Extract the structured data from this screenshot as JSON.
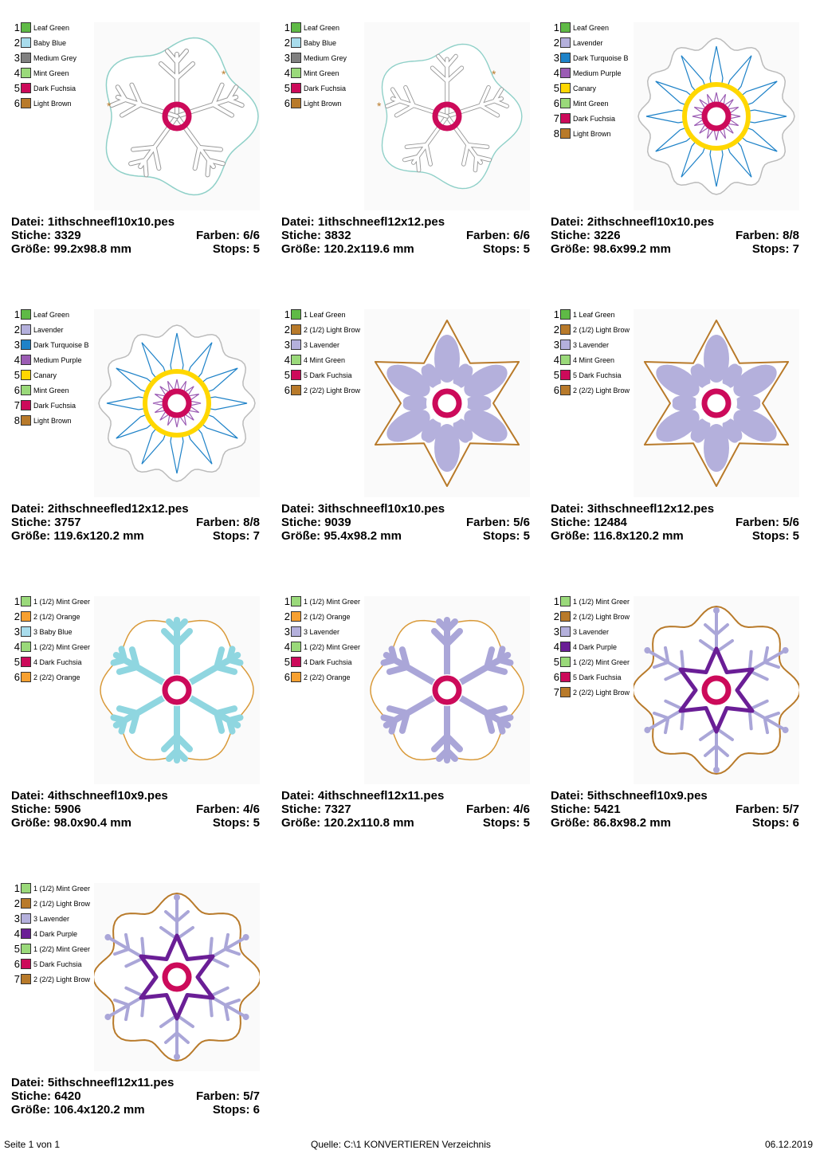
{
  "cards": [
    {
      "file_label": "Datei:",
      "file": "1ithschneefl10x10.pes",
      "stitches_label": "Stiche:",
      "stitches": "3329",
      "colors_label": "Farben:",
      "colors": "6/6",
      "size_label": "Größe:",
      "size": "99.2x98.8 mm",
      "stops_label": "Stops:",
      "stops": "5",
      "legend": [
        {
          "n": "1",
          "c": "#5fba46",
          "l": "Leaf Green"
        },
        {
          "n": "2",
          "c": "#a8dcec",
          "l": "Baby Blue"
        },
        {
          "n": "3",
          "c": "#808080",
          "l": "Medium Grey"
        },
        {
          "n": "4",
          "c": "#9ad97a",
          "l": "Mint Green"
        },
        {
          "n": "5",
          "c": "#cc0a5a",
          "l": "Dark Fuchsia"
        },
        {
          "n": "6",
          "c": "#b87a2a",
          "l": "Light Brown"
        }
      ]
    },
    {
      "file_label": "Datei:",
      "file": "1ithschneefl12x12.pes",
      "stitches_label": "Stiche:",
      "stitches": "3832",
      "colors_label": "Farben:",
      "colors": "6/6",
      "size_label": "Größe:",
      "size": "120.2x119.6 mm",
      "stops_label": "Stops:",
      "stops": "5",
      "legend": [
        {
          "n": "1",
          "c": "#5fba46",
          "l": "Leaf Green"
        },
        {
          "n": "2",
          "c": "#a8dcec",
          "l": "Baby Blue"
        },
        {
          "n": "3",
          "c": "#808080",
          "l": "Medium Grey"
        },
        {
          "n": "4",
          "c": "#9ad97a",
          "l": "Mint Green"
        },
        {
          "n": "5",
          "c": "#cc0a5a",
          "l": "Dark Fuchsia"
        },
        {
          "n": "6",
          "c": "#b87a2a",
          "l": "Light Brown"
        }
      ]
    },
    {
      "file_label": "Datei:",
      "file": "2ithschneefl10x10.pes",
      "stitches_label": "Stiche:",
      "stitches": "3226",
      "colors_label": "Farben:",
      "colors": "8/8",
      "size_label": "Größe:",
      "size": "98.6x99.2 mm",
      "stops_label": "Stops:",
      "stops": "7",
      "legend": [
        {
          "n": "1",
          "c": "#5fba46",
          "l": "Leaf Green"
        },
        {
          "n": "2",
          "c": "#b4b0dc",
          "l": "Lavender"
        },
        {
          "n": "3",
          "c": "#1e82c8",
          "l": "Dark Turquoise B"
        },
        {
          "n": "4",
          "c": "#9b5cb4",
          "l": "Medium Purple"
        },
        {
          "n": "5",
          "c": "#ffd700",
          "l": "Canary"
        },
        {
          "n": "6",
          "c": "#9ad97a",
          "l": "Mint Green"
        },
        {
          "n": "7",
          "c": "#cc0a5a",
          "l": "Dark Fuchsia"
        },
        {
          "n": "8",
          "c": "#b87a2a",
          "l": "Light Brown"
        }
      ]
    },
    {
      "file_label": "Datei:",
      "file": "2ithschneefled12x12.pes",
      "stitches_label": "Stiche:",
      "stitches": "3757",
      "colors_label": "Farben:",
      "colors": "8/8",
      "size_label": "Größe:",
      "size": "119.6x120.2 mm",
      "stops_label": "Stops:",
      "stops": "7",
      "legend": [
        {
          "n": "1",
          "c": "#5fba46",
          "l": "Leaf Green"
        },
        {
          "n": "2",
          "c": "#b4b0dc",
          "l": "Lavender"
        },
        {
          "n": "3",
          "c": "#1e82c8",
          "l": "Dark Turquoise B"
        },
        {
          "n": "4",
          "c": "#9b5cb4",
          "l": "Medium Purple"
        },
        {
          "n": "5",
          "c": "#ffd700",
          "l": "Canary"
        },
        {
          "n": "6",
          "c": "#9ad97a",
          "l": "Mint Green"
        },
        {
          "n": "7",
          "c": "#cc0a5a",
          "l": "Dark Fuchsia"
        },
        {
          "n": "8",
          "c": "#b87a2a",
          "l": "Light Brown"
        }
      ]
    },
    {
      "file_label": "Datei:",
      "file": "3ithschneefl10x10.pes",
      "stitches_label": "Stiche:",
      "stitches": "9039",
      "colors_label": "Farben:",
      "colors": "5/6",
      "size_label": "Größe:",
      "size": "95.4x98.2 mm",
      "stops_label": "Stops:",
      "stops": "5",
      "legend": [
        {
          "n": "1",
          "c": "#5fba46",
          "l": "1 Leaf Green"
        },
        {
          "n": "2",
          "c": "#b87a2a",
          "l": "2 (1/2) Light Brow"
        },
        {
          "n": "3",
          "c": "#b4b0dc",
          "l": "3 Lavender"
        },
        {
          "n": "4",
          "c": "#9ad97a",
          "l": "4 Mint Green"
        },
        {
          "n": "5",
          "c": "#cc0a5a",
          "l": "5 Dark Fuchsia"
        },
        {
          "n": "6",
          "c": "#b87a2a",
          "l": "2 (2/2) Light Brow"
        }
      ]
    },
    {
      "file_label": "Datei:",
      "file": "3ithschneefl12x12.pes",
      "stitches_label": "Stiche:",
      "stitches": "12484",
      "colors_label": "Farben:",
      "colors": "5/6",
      "size_label": "Größe:",
      "size": "116.8x120.2 mm",
      "stops_label": "Stops:",
      "stops": "5",
      "legend": [
        {
          "n": "1",
          "c": "#5fba46",
          "l": "1 Leaf Green"
        },
        {
          "n": "2",
          "c": "#b87a2a",
          "l": "2 (1/2) Light Brow"
        },
        {
          "n": "3",
          "c": "#b4b0dc",
          "l": "3 Lavender"
        },
        {
          "n": "4",
          "c": "#9ad97a",
          "l": "4 Mint Green"
        },
        {
          "n": "5",
          "c": "#cc0a5a",
          "l": "5 Dark Fuchsia"
        },
        {
          "n": "6",
          "c": "#b87a2a",
          "l": "2 (2/2) Light Brow"
        }
      ]
    },
    {
      "file_label": "Datei:",
      "file": "4ithschneefl10x9.pes",
      "stitches_label": "Stiche:",
      "stitches": "5906",
      "colors_label": "Farben:",
      "colors": "4/6",
      "size_label": "Größe:",
      "size": "98.0x90.4 mm",
      "stops_label": "Stops:",
      "stops": "5",
      "legend": [
        {
          "n": "1",
          "c": "#9ad97a",
          "l": "1 (1/2) Mint Greer"
        },
        {
          "n": "2",
          "c": "#f7a030",
          "l": "2 (1/2) Orange"
        },
        {
          "n": "3",
          "c": "#a8dcec",
          "l": "3 Baby Blue"
        },
        {
          "n": "4",
          "c": "#9ad97a",
          "l": "1 (2/2) Mint Greer"
        },
        {
          "n": "5",
          "c": "#cc0a5a",
          "l": "4 Dark Fuchsia"
        },
        {
          "n": "6",
          "c": "#f7a030",
          "l": "2 (2/2) Orange"
        }
      ]
    },
    {
      "file_label": "Datei:",
      "file": "4ithschneefl12x11.pes",
      "stitches_label": "Stiche:",
      "stitches": "7327",
      "colors_label": "Farben:",
      "colors": "4/6",
      "size_label": "Größe:",
      "size": "120.2x110.8 mm",
      "stops_label": "Stops:",
      "stops": "5",
      "legend": [
        {
          "n": "1",
          "c": "#9ad97a",
          "l": "1 (1/2) Mint Greer"
        },
        {
          "n": "2",
          "c": "#f7a030",
          "l": "2 (1/2) Orange"
        },
        {
          "n": "3",
          "c": "#b4b0dc",
          "l": "3 Lavender"
        },
        {
          "n": "4",
          "c": "#9ad97a",
          "l": "1 (2/2) Mint Greer"
        },
        {
          "n": "5",
          "c": "#cc0a5a",
          "l": "4 Dark Fuchsia"
        },
        {
          "n": "6",
          "c": "#f7a030",
          "l": "2 (2/2) Orange"
        }
      ]
    },
    {
      "file_label": "Datei:",
      "file": "5ithschneefl10x9.pes",
      "stitches_label": "Stiche:",
      "stitches": "5421",
      "colors_label": "Farben:",
      "colors": "5/7",
      "size_label": "Größe:",
      "size": "86.8x98.2 mm",
      "stops_label": "Stops:",
      "stops": "6",
      "legend": [
        {
          "n": "1",
          "c": "#9ad97a",
          "l": "1 (1/2) Mint Greer"
        },
        {
          "n": "2",
          "c": "#b87a2a",
          "l": "2 (1/2) Light Brow"
        },
        {
          "n": "3",
          "c": "#b4b0dc",
          "l": "3 Lavender"
        },
        {
          "n": "4",
          "c": "#6a1e96",
          "l": "4 Dark Purple"
        },
        {
          "n": "5",
          "c": "#9ad97a",
          "l": "1 (2/2) Mint Greer"
        },
        {
          "n": "6",
          "c": "#cc0a5a",
          "l": "5 Dark Fuchsia"
        },
        {
          "n": "7",
          "c": "#b87a2a",
          "l": "2 (2/2) Light Brow"
        }
      ]
    },
    {
      "file_label": "Datei:",
      "file": "5ithschneefl12x11.pes",
      "stitches_label": "Stiche:",
      "stitches": "6420",
      "colors_label": "Farben:",
      "colors": "5/7",
      "size_label": "Größe:",
      "size": "106.4x120.2 mm",
      "stops_label": "Stops:",
      "stops": "6",
      "legend": [
        {
          "n": "1",
          "c": "#9ad97a",
          "l": "1 (1/2) Mint Greer"
        },
        {
          "n": "2",
          "c": "#b87a2a",
          "l": "2 (1/2) Light Brow"
        },
        {
          "n": "3",
          "c": "#b4b0dc",
          "l": "3 Lavender"
        },
        {
          "n": "4",
          "c": "#6a1e96",
          "l": "4 Dark Purple"
        },
        {
          "n": "5",
          "c": "#9ad97a",
          "l": "1 (2/2) Mint Greer"
        },
        {
          "n": "6",
          "c": "#cc0a5a",
          "l": "5 Dark Fuchsia"
        },
        {
          "n": "7",
          "c": "#b87a2a",
          "l": "2 (2/2) Light Brow"
        }
      ]
    }
  ],
  "footer": {
    "page": "Seite 1 von 1",
    "source": "Quelle: C:\\1 KONVERTIEREN Verzeichnis",
    "date": "06.12.2019"
  }
}
